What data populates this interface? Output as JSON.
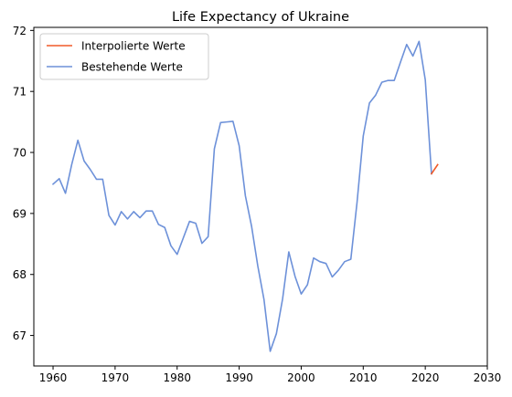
{
  "chart_data": {
    "type": "line",
    "title": "Life Expectancy of Ukraine",
    "xlabel": "",
    "ylabel": "",
    "xlim": [
      1956.9,
      2030
    ],
    "ylim": [
      66.5,
      72.05
    ],
    "xticks": [
      1960,
      1970,
      1980,
      1990,
      2000,
      2010,
      2020,
      2030
    ],
    "yticks": [
      67,
      68,
      69,
      70,
      71,
      72
    ],
    "grid": false,
    "legend_position": "top-left",
    "series": [
      {
        "name": "Interpolierte Werte",
        "color": "#f05a28",
        "x": [
          2021,
          2022
        ],
        "y": [
          69.65,
          69.8
        ]
      },
      {
        "name": "Bestehende Werte",
        "color": "#6d91d9",
        "x": [
          1960,
          1961,
          1962,
          1963,
          1964,
          1965,
          1966,
          1967,
          1968,
          1969,
          1970,
          1971,
          1972,
          1973,
          1974,
          1975,
          1976,
          1977,
          1978,
          1979,
          1980,
          1981,
          1982,
          1983,
          1984,
          1985,
          1986,
          1987,
          1988,
          1989,
          1990,
          1991,
          1992,
          1993,
          1994,
          1995,
          1996,
          1997,
          1998,
          1999,
          2000,
          2001,
          2002,
          2003,
          2004,
          2005,
          2006,
          2007,
          2008,
          2009,
          2010,
          2011,
          2012,
          2013,
          2014,
          2015,
          2016,
          2017,
          2018,
          2019,
          2020,
          2021
        ],
        "y": [
          69.48,
          69.57,
          69.33,
          69.8,
          70.2,
          69.86,
          69.72,
          69.56,
          69.56,
          68.97,
          68.81,
          69.03,
          68.91,
          69.03,
          68.93,
          69.04,
          69.04,
          68.82,
          68.77,
          68.47,
          68.33,
          68.6,
          68.87,
          68.84,
          68.51,
          68.62,
          70.06,
          70.49,
          70.5,
          70.51,
          70.11,
          69.29,
          68.79,
          68.14,
          67.59,
          66.74,
          67.03,
          67.6,
          68.37,
          67.97,
          67.68,
          67.83,
          68.27,
          68.21,
          68.18,
          67.96,
          68.07,
          68.21,
          68.25,
          69.18,
          70.27,
          70.81,
          70.94,
          71.15,
          71.18,
          71.18,
          71.48,
          71.77,
          71.58,
          71.82,
          71.19,
          69.65
        ]
      }
    ]
  }
}
